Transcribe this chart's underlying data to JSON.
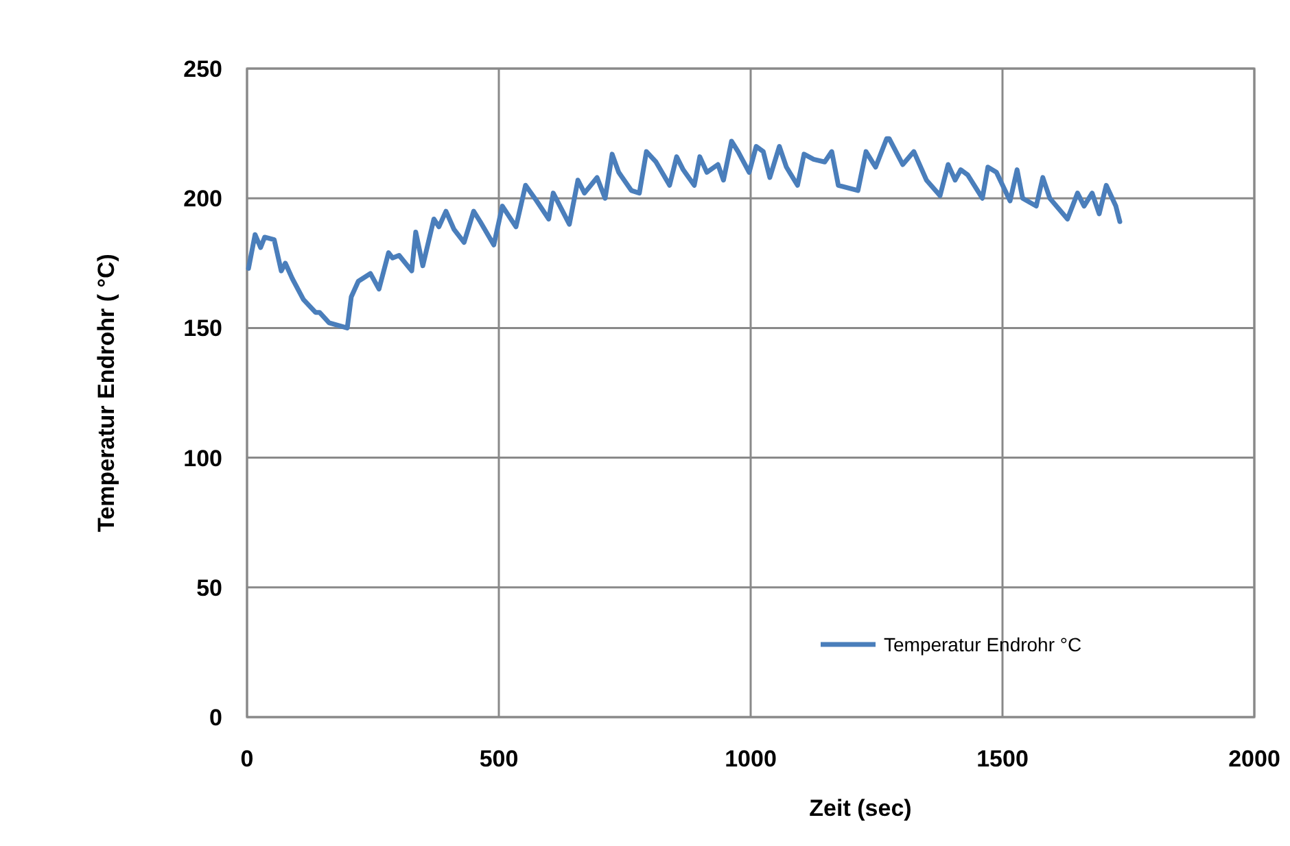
{
  "chart_data": {
    "type": "line",
    "xlabel": "Zeit (sec)",
    "ylabel": "Temperatur Endrohr ( °C)",
    "xlim": [
      0,
      2000
    ],
    "xticks": [
      0,
      500,
      1000,
      1500,
      2000
    ],
    "ylim": [
      0,
      250
    ],
    "yticks": [
      0,
      50,
      100,
      150,
      200,
      250
    ],
    "grid": true,
    "legend": "bottom right",
    "marker": "none",
    "line_style": "solid",
    "series": [
      {
        "name": "Temperatur Endrohr °C",
        "color": "#4a7ebb",
        "x": [
          3,
          16,
          27,
          35,
          54,
          68,
          76,
          90,
          112,
          136,
          144,
          163,
          199,
          207,
          221,
          245,
          262,
          281,
          289,
          302,
          327,
          335,
          349,
          371,
          381,
          395,
          411,
          431,
          450,
          463,
          490,
          507,
          534,
          553,
          575,
          599,
          608,
          640,
          657,
          670,
          695,
          711,
          725,
          738,
          763,
          779,
          793,
          812,
          839,
          853,
          866,
          888,
          899,
          913,
          935,
          946,
          962,
          975,
          997,
          1011,
          1025,
          1038,
          1057,
          1071,
          1093,
          1106,
          1125,
          1147,
          1161,
          1174,
          1213,
          1229,
          1248,
          1270,
          1275,
          1302,
          1324,
          1349,
          1376,
          1392,
          1406,
          1417,
          1431,
          1460,
          1471,
          1488,
          1515,
          1529,
          1540,
          1567,
          1580,
          1594,
          1629,
          1649,
          1662,
          1678,
          1692,
          1706,
          1725,
          1733
        ],
        "values": [
          173,
          186,
          181,
          185,
          184,
          172,
          175,
          169,
          161,
          156,
          156,
          152,
          150,
          162,
          168,
          171,
          165,
          179,
          177,
          178,
          172,
          187,
          174,
          192,
          189,
          195,
          188,
          183,
          195,
          191,
          182,
          197,
          189,
          205,
          199,
          192,
          202,
          190,
          207,
          202,
          208,
          200,
          217,
          210,
          203,
          202,
          218,
          214,
          205,
          216,
          211,
          205,
          216,
          210,
          213,
          207,
          222,
          218,
          210,
          220,
          218,
          208,
          220,
          212,
          205,
          217,
          215,
          214,
          218,
          205,
          203,
          218,
          212,
          223,
          223,
          213,
          218,
          207,
          201,
          213,
          207,
          211,
          209,
          200,
          212,
          210,
          199,
          211,
          200,
          197,
          208,
          200,
          192,
          202,
          197,
          202,
          194,
          205,
          197,
          191
        ]
      }
    ]
  }
}
